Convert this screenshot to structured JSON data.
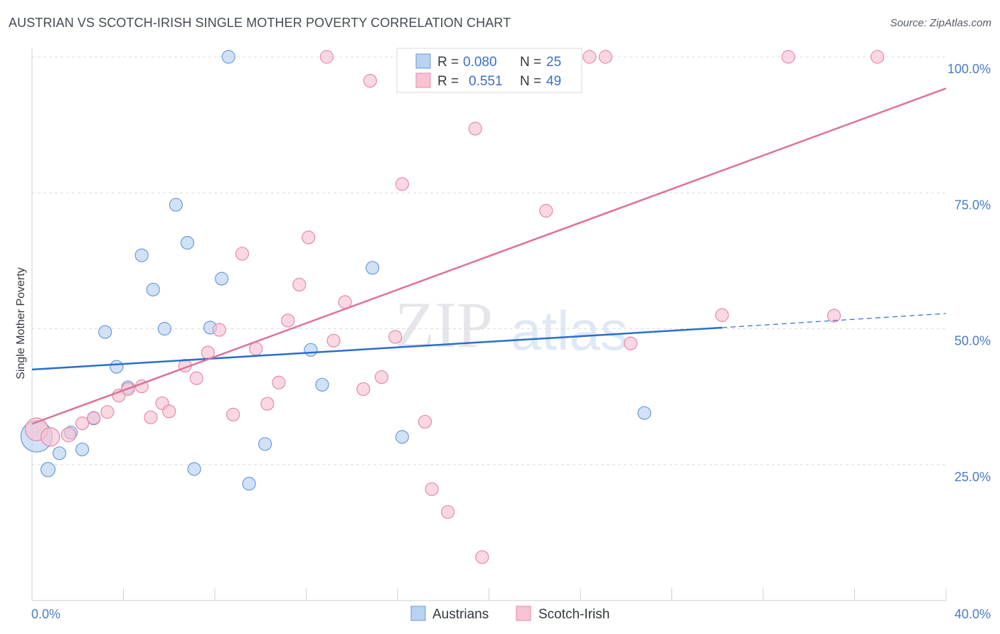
{
  "title": "AUSTRIAN VS SCOTCH-IRISH SINGLE MOTHER POVERTY CORRELATION CHART",
  "source": "Source: ZipAtlas.com",
  "watermark": {
    "zip": "ZIP",
    "atlas": "atlas"
  },
  "colors": {
    "austrian_fill": "#b8d2f2",
    "austrian_stroke": "#6a9bd8",
    "austrian_line": "#2a6ecc",
    "scotch_fill": "#f8c3d3",
    "scotch_stroke": "#e68aa8",
    "scotch_line": "#e0709a",
    "tick_text": "#4a7bc8",
    "grid": "#dcdcdc"
  },
  "legend": {
    "rows": [
      {
        "r_label": "R =",
        "r_value": "0.080",
        "n_label": "N =",
        "n_value": "25"
      },
      {
        "r_label": "R =",
        "r_value": "0.551",
        "n_label": "N =",
        "n_value": "49"
      }
    ]
  },
  "chart_data": {
    "type": "scatter",
    "title": "AUSTRIAN VS SCOTCH-IRISH SINGLE MOTHER POVERTY CORRELATION CHART",
    "xlabel": "",
    "ylabel": "Single Mother Poverty",
    "xlim": [
      0,
      40
    ],
    "ylim": [
      0,
      102
    ],
    "x_tick_labels": [
      "0.0%",
      "40.0%"
    ],
    "y_ticks": [
      25,
      50,
      75,
      100
    ],
    "y_tick_labels": [
      "25.0%",
      "50.0%",
      "75.0%",
      "100.0%"
    ],
    "grid": true,
    "legend_position": "top-center",
    "series": [
      {
        "name": "Austrians",
        "r": 0.08,
        "n": 25,
        "trend": {
          "x0": 0,
          "y0": 42.5,
          "x1": 30.2,
          "y1": 50.2,
          "dashed_to_x": 40,
          "dashed_to_y": 52.8
        },
        "points": [
          [
            0.2,
            30.2,
            22
          ],
          [
            0.7,
            24.1,
            10
          ],
          [
            1.2,
            27.1,
            9
          ],
          [
            1.7,
            30.9,
            9
          ],
          [
            2.2,
            27.8,
            9
          ],
          [
            2.7,
            33.5,
            9
          ],
          [
            3.2,
            49.4,
            9
          ],
          [
            3.7,
            43.0,
            9
          ],
          [
            4.2,
            39.2,
            9
          ],
          [
            4.8,
            63.5,
            9
          ],
          [
            5.3,
            57.2,
            9
          ],
          [
            5.8,
            50.0,
            9
          ],
          [
            6.3,
            72.8,
            9
          ],
          [
            6.8,
            65.8,
            9
          ],
          [
            7.1,
            24.2,
            9
          ],
          [
            7.8,
            50.2,
            9
          ],
          [
            8.3,
            59.2,
            9
          ],
          [
            8.6,
            100.0,
            9
          ],
          [
            9.5,
            21.5,
            9
          ],
          [
            10.2,
            28.8,
            9
          ],
          [
            12.2,
            46.1,
            9
          ],
          [
            12.7,
            39.7,
            9
          ],
          [
            14.9,
            61.2,
            9
          ],
          [
            16.2,
            30.1,
            9
          ],
          [
            26.8,
            34.5,
            9
          ]
        ]
      },
      {
        "name": "Scotch-Irish",
        "r": 0.551,
        "n": 49,
        "trend": {
          "x0": 0,
          "y0": 32.5,
          "x1": 40,
          "y1": 94.2
        },
        "points": [
          [
            0.2,
            31.5,
            16
          ],
          [
            0.8,
            30.1,
            13
          ],
          [
            1.6,
            30.5,
            10
          ],
          [
            2.2,
            32.6,
            9
          ],
          [
            2.7,
            33.6,
            9
          ],
          [
            3.3,
            34.7,
            9
          ],
          [
            3.8,
            37.7,
            9
          ],
          [
            4.2,
            38.9,
            9
          ],
          [
            4.8,
            39.4,
            9
          ],
          [
            5.2,
            33.7,
            9
          ],
          [
            5.7,
            36.3,
            9
          ],
          [
            6.0,
            34.8,
            9
          ],
          [
            6.7,
            43.2,
            9
          ],
          [
            7.2,
            40.9,
            9
          ],
          [
            7.7,
            45.6,
            9
          ],
          [
            8.2,
            49.8,
            9
          ],
          [
            8.8,
            34.2,
            9
          ],
          [
            9.2,
            63.8,
            9
          ],
          [
            9.8,
            46.3,
            9
          ],
          [
            10.3,
            36.2,
            9
          ],
          [
            10.8,
            40.1,
            9
          ],
          [
            11.2,
            51.5,
            9
          ],
          [
            11.7,
            58.1,
            9
          ],
          [
            12.1,
            66.8,
            9
          ],
          [
            12.9,
            100.0,
            9
          ],
          [
            13.2,
            47.8,
            9
          ],
          [
            13.7,
            54.9,
            9
          ],
          [
            14.5,
            38.9,
            9
          ],
          [
            14.8,
            95.6,
            9
          ],
          [
            15.3,
            41.1,
            9
          ],
          [
            15.9,
            48.5,
            9
          ],
          [
            16.2,
            76.6,
            9
          ],
          [
            17.2,
            32.9,
            9
          ],
          [
            17.5,
            20.5,
            9
          ],
          [
            18.2,
            16.3,
            9
          ],
          [
            18.7,
            100.0,
            9
          ],
          [
            19.4,
            86.8,
            9
          ],
          [
            19.7,
            8.0,
            9
          ],
          [
            21.2,
            100.0,
            9
          ],
          [
            22.5,
            71.7,
            9
          ],
          [
            24.4,
            100.0,
            9
          ],
          [
            25.1,
            100.0,
            9
          ],
          [
            26.2,
            47.3,
            9
          ],
          [
            30.2,
            52.5,
            9
          ],
          [
            33.1,
            100.0,
            9
          ],
          [
            35.1,
            52.4,
            9
          ],
          [
            37.0,
            100.0,
            9
          ],
          [
            20.1,
            100.0,
            9
          ],
          [
            17.8,
            100.0,
            9
          ]
        ]
      }
    ]
  }
}
